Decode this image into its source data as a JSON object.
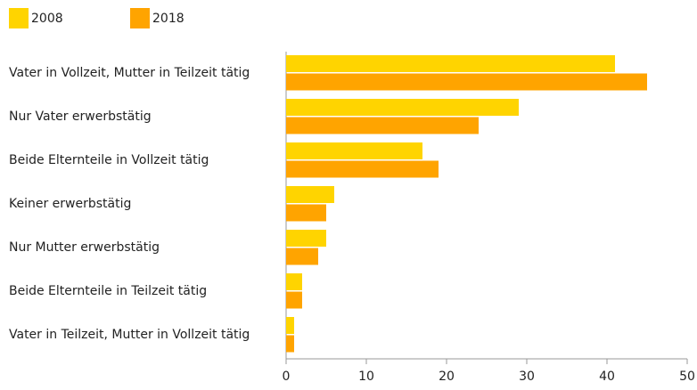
{
  "chart_data": {
    "type": "bar",
    "orientation": "horizontal",
    "categories": [
      "Vater  in Vollzeit, Mutter in Teilzeit tätig",
      "Nur Vater erwerbstätig",
      "Beide Elternteile in Vollzeit tätig",
      "Keiner erwerbstätig",
      "Nur Mutter erwerbstätig",
      "Beide Elternteile in Teilzeit tätig",
      "Vater in Teilzeit, Mutter in Vollzeit tätig"
    ],
    "series": [
      {
        "name": "2008",
        "color": "#ffd400",
        "values": [
          41,
          29,
          17,
          6,
          5,
          2,
          1
        ]
      },
      {
        "name": "2018",
        "color": "#ffa400",
        "values": [
          45,
          24,
          19,
          5,
          4,
          2,
          1
        ]
      }
    ],
    "xlim": [
      0,
      50
    ],
    "xticks": [
      0,
      10,
      20,
      30,
      40,
      50
    ],
    "grid": false,
    "legend": "top-left"
  }
}
